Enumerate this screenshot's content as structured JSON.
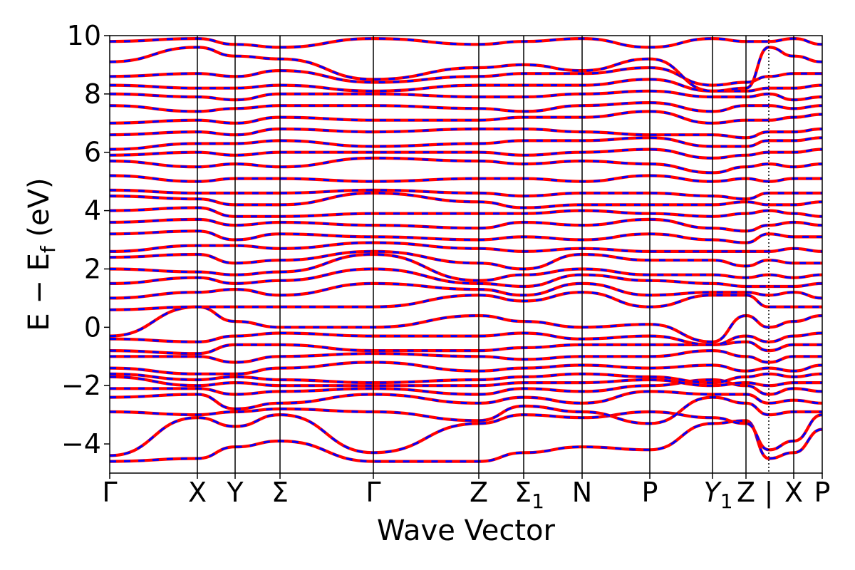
{
  "chart_data": {
    "type": "line",
    "xlabel": "Wave Vector",
    "ylabel": "E − E_f (eV)",
    "ylim": [
      -5,
      10
    ],
    "yticks": [
      -4,
      -2,
      0,
      2,
      4,
      6,
      8,
      10
    ],
    "ytick_labels": [
      "−4",
      "−2",
      "0",
      "2",
      "4",
      "6",
      "8",
      "10"
    ],
    "grid": false,
    "legend": "none",
    "kpath": [
      {
        "label": "Γ",
        "x": 0.0
      },
      {
        "label": "X",
        "x": 0.123
      },
      {
        "label": "Y",
        "x": 0.176
      },
      {
        "label": "Σ",
        "x": 0.239
      },
      {
        "label": "Γ",
        "x": 0.37
      },
      {
        "label": "Z",
        "x": 0.518
      },
      {
        "label": "Σ",
        "sub": "1",
        "x": 0.581
      },
      {
        "label": "N",
        "x": 0.663
      },
      {
        "label": "P",
        "x": 0.758
      },
      {
        "label": "Y",
        "sub": "1",
        "x": 0.846,
        "italic": true
      },
      {
        "label": "Z",
        "x": 0.893
      },
      {
        "label": "|",
        "x": 0.925,
        "separator": true
      },
      {
        "label": "X",
        "x": 0.96
      },
      {
        "label": "P",
        "x": 1.0
      }
    ],
    "series_colors": {
      "solid": "#ff0000",
      "dashed": "#0000ff"
    },
    "band_nodes_x": [
      0.0,
      0.123,
      0.176,
      0.239,
      0.37,
      0.518,
      0.581,
      0.663,
      0.758,
      0.846,
      0.893,
      0.925,
      0.96,
      1.0
    ],
    "bands": [
      [
        -4.6,
        -4.5,
        -4.1,
        -3.9,
        -4.6,
        -4.6,
        -4.3,
        -4.1,
        -4.2,
        -3.3,
        -3.2,
        -4.5,
        -4.3,
        -3.5
      ],
      [
        -4.4,
        -3.1,
        -3.4,
        -3.0,
        -4.3,
        -3.3,
        -3.0,
        -3.1,
        -2.9,
        -3.1,
        -3.3,
        -4.2,
        -3.9,
        -3.0
      ],
      [
        -2.9,
        -3.0,
        -2.9,
        -2.8,
        -2.9,
        -3.2,
        -2.7,
        -2.9,
        -3.3,
        -2.4,
        -2.6,
        -3.0,
        -2.9,
        -2.9
      ],
      [
        -2.4,
        -2.3,
        -2.8,
        -2.6,
        -2.3,
        -2.6,
        -2.4,
        -2.6,
        -2.2,
        -2.3,
        -2.3,
        -2.6,
        -2.5,
        -2.6
      ],
      [
        -2.1,
        -2.1,
        -2.3,
        -2.2,
        -2.1,
        -2.3,
        -2.1,
        -2.2,
        -2.0,
        -1.8,
        -2.0,
        -2.3,
        -2.1,
        -2.2
      ],
      [
        -1.7,
        -2.0,
        -1.9,
        -2.0,
        -2.0,
        -2.0,
        -1.9,
        -1.9,
        -1.8,
        -2.0,
        -1.9,
        -2.0,
        -1.9,
        -1.9
      ],
      [
        -1.6,
        -1.8,
        -1.7,
        -1.8,
        -1.9,
        -1.8,
        -1.7,
        -1.6,
        -1.7,
        -1.9,
        -1.7,
        -1.6,
        -1.7,
        -1.6
      ],
      [
        -1.4,
        -1.6,
        -1.6,
        -1.4,
        -1.2,
        -1.5,
        -1.4,
        -1.3,
        -1.4,
        -1.3,
        -1.5,
        -1.4,
        -1.5,
        -1.3
      ],
      [
        -1.0,
        -1.0,
        -1.2,
        -1.0,
        -0.9,
        -1.0,
        -1.1,
        -1.0,
        -1.0,
        -0.8,
        -1.0,
        -1.2,
        -1.0,
        -1.0
      ],
      [
        -0.8,
        -0.9,
        -0.6,
        -0.6,
        -0.8,
        -0.8,
        -0.7,
        -0.6,
        -0.6,
        -0.6,
        -0.5,
        -0.8,
        -0.6,
        -0.6
      ],
      [
        -0.4,
        -0.5,
        -0.3,
        -0.2,
        -0.3,
        -0.3,
        -0.2,
        -0.4,
        -0.3,
        -0.6,
        -0.3,
        -0.5,
        -0.3,
        -0.2
      ],
      [
        -0.3,
        0.7,
        0.2,
        0.0,
        0.0,
        0.4,
        0.2,
        0.0,
        0.1,
        -0.5,
        0.4,
        0.0,
        0.2,
        0.4
      ],
      [
        0.6,
        0.7,
        0.7,
        0.7,
        0.7,
        1.1,
        0.9,
        1.2,
        0.7,
        1.1,
        1.1,
        0.7,
        0.7,
        0.7
      ],
      [
        1.0,
        1.2,
        1.3,
        1.1,
        1.5,
        1.3,
        1.1,
        1.5,
        1.1,
        1.2,
        1.2,
        1.1,
        1.2,
        1.0
      ],
      [
        1.5,
        1.7,
        1.5,
        1.6,
        2.0,
        1.5,
        1.4,
        1.8,
        1.6,
        1.5,
        1.4,
        1.4,
        1.4,
        1.5
      ],
      [
        2.0,
        1.9,
        1.8,
        1.9,
        2.5,
        1.6,
        1.8,
        2.0,
        1.8,
        1.8,
        1.7,
        1.8,
        1.7,
        1.8
      ],
      [
        2.4,
        2.5,
        2.2,
        2.3,
        2.6,
        2.2,
        2.0,
        2.5,
        2.3,
        2.3,
        2.1,
        2.3,
        2.2,
        2.2
      ],
      [
        2.6,
        2.8,
        2.8,
        2.7,
        2.9,
        2.7,
        2.6,
        2.7,
        2.6,
        2.6,
        2.6,
        2.6,
        2.7,
        2.6
      ],
      [
        3.2,
        3.3,
        3.0,
        3.2,
        3.1,
        3.0,
        3.1,
        3.0,
        3.2,
        3.0,
        2.9,
        3.2,
        3.1,
        3.1
      ],
      [
        3.6,
        3.7,
        3.5,
        3.6,
        3.5,
        3.4,
        3.6,
        3.5,
        3.7,
        3.4,
        3.3,
        3.5,
        3.6,
        3.5
      ],
      [
        4.0,
        4.1,
        3.8,
        3.8,
        3.9,
        3.9,
        3.9,
        4.0,
        3.9,
        3.8,
        3.9,
        4.0,
        3.9,
        3.8
      ],
      [
        4.5,
        4.4,
        4.2,
        4.2,
        4.6,
        4.3,
        4.1,
        4.2,
        4.2,
        4.2,
        4.3,
        4.2,
        4.2,
        4.3
      ],
      [
        4.7,
        4.6,
        4.6,
        4.6,
        4.7,
        4.6,
        4.5,
        4.6,
        4.6,
        4.5,
        4.4,
        4.6,
        4.6,
        4.6
      ],
      [
        5.2,
        5.0,
        5.1,
        5.1,
        5.0,
        5.1,
        5.1,
        5.0,
        5.2,
        5.0,
        5.1,
        5.0,
        5.1,
        5.1
      ],
      [
        5.7,
        5.5,
        5.6,
        5.5,
        5.8,
        5.7,
        5.6,
        5.7,
        5.6,
        5.3,
        5.5,
        5.6,
        5.5,
        5.6
      ],
      [
        5.9,
        6.0,
        5.9,
        6.0,
        6.0,
        6.0,
        5.9,
        6.0,
        6.1,
        5.8,
        5.9,
        6.0,
        6.0,
        6.1
      ],
      [
        6.1,
        6.3,
        6.3,
        6.4,
        6.2,
        6.3,
        6.4,
        6.4,
        6.5,
        6.2,
        6.2,
        6.4,
        6.4,
        6.5
      ],
      [
        6.6,
        6.7,
        6.6,
        6.8,
        6.7,
        6.8,
        6.8,
        6.7,
        6.6,
        6.6,
        6.5,
        6.7,
        6.7,
        6.8
      ],
      [
        7.0,
        7.1,
        7.0,
        7.2,
        7.1,
        7.1,
        7.2,
        7.2,
        7.4,
        7.0,
        7.1,
        7.1,
        7.2,
        7.3
      ],
      [
        7.6,
        7.4,
        7.5,
        7.6,
        7.6,
        7.5,
        7.4,
        7.6,
        7.7,
        7.4,
        7.6,
        7.6,
        7.5,
        7.6
      ],
      [
        8.0,
        7.9,
        7.8,
        8.0,
        8.0,
        7.9,
        7.9,
        8.0,
        8.1,
        7.9,
        7.9,
        8.0,
        7.8,
        7.9
      ],
      [
        8.3,
        8.2,
        8.2,
        8.3,
        8.1,
        8.3,
        8.3,
        8.3,
        8.5,
        8.1,
        8.1,
        8.2,
        8.2,
        8.3
      ],
      [
        8.6,
        8.7,
        8.6,
        8.8,
        8.4,
        8.6,
        8.7,
        8.7,
        8.9,
        8.3,
        8.4,
        8.6,
        8.7,
        8.7
      ],
      [
        9.1,
        9.6,
        9.3,
        9.2,
        8.5,
        8.9,
        9.0,
        8.8,
        9.2,
        8.1,
        8.2,
        9.6,
        9.3,
        9.1
      ],
      [
        9.8,
        9.9,
        9.7,
        9.6,
        9.9,
        9.7,
        9.8,
        9.9,
        9.6,
        9.9,
        9.8,
        9.8,
        9.9,
        9.7
      ]
    ]
  }
}
